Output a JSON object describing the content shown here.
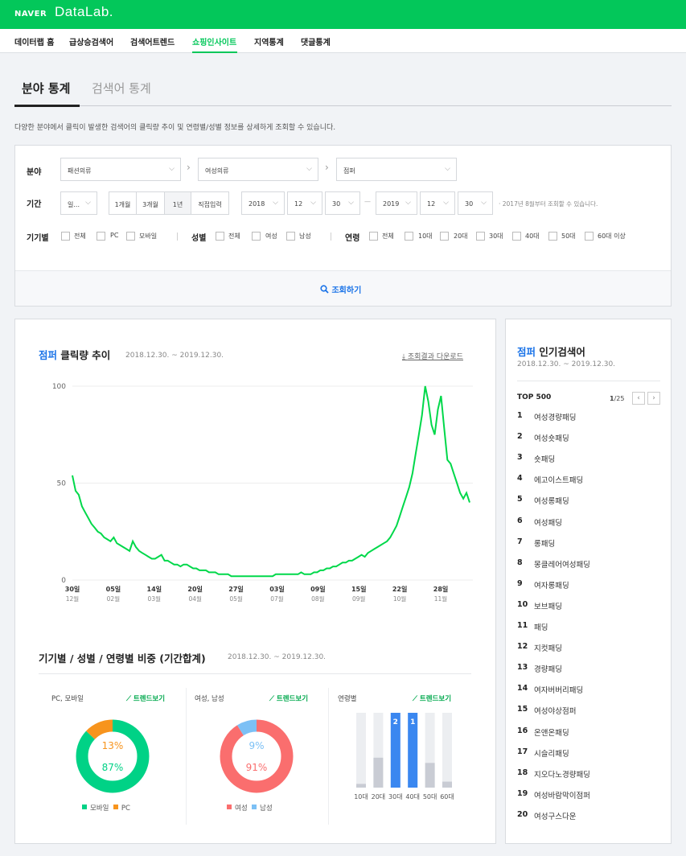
{
  "header": {
    "naver": "NAVER",
    "datalab": "DataLab.",
    "nav": [
      "데이터랩 홈",
      "급상승검색어",
      "검색어트렌드",
      "쇼핑인사이트",
      "지역통계",
      "댓글통계"
    ]
  },
  "tabs": [
    "분야 통계",
    "검색어 통계"
  ],
  "description": "다양한 분야에서 클릭이 발생한 검색어의 클릭량 추이 및 연령별/성별 정보를 상세하게 조회할 수 있습니다.",
  "filters": {
    "field_label": "분야",
    "category1": "패션의류",
    "category2": "여성의류",
    "category3": "점퍼",
    "period_label": "기간",
    "period_unit": "일...",
    "period_buttons": [
      "1개월",
      "3개월",
      "1년",
      "직접입력"
    ],
    "start_year": "2018",
    "start_month": "12",
    "start_day": "30",
    "dash": "—",
    "end_year": "2019",
    "end_month": "12",
    "end_day": "30",
    "note": "· 2017년 8월부터 조회할 수 있습니다.",
    "device_label": "기기별",
    "device_options": [
      "전체",
      "PC",
      "모바일"
    ],
    "gender_label": "성별",
    "gender_options": [
      "전체",
      "여성",
      "남성"
    ],
    "age_label": "연령",
    "age_options": [
      "전체",
      "10대",
      "20대",
      "30대",
      "40대",
      "50대",
      "60대 이상"
    ],
    "search_button": "조회하기"
  },
  "trend": {
    "keyword": "점퍼",
    "title_suffix": "클릭량 추이",
    "date_range": "2018.12.30. ~ 2019.12.30.",
    "download": "조회결과 다운로드"
  },
  "chart_data": {
    "type": "line",
    "ylim": [
      0,
      100
    ],
    "yticks": [
      "100",
      "50",
      "0"
    ],
    "xticks": [
      {
        "day": "30일",
        "month": "12월"
      },
      {
        "day": "05일",
        "month": "02월"
      },
      {
        "day": "14일",
        "month": "03월"
      },
      {
        "day": "20일",
        "month": "04월"
      },
      {
        "day": "27일",
        "month": "05월"
      },
      {
        "day": "03일",
        "month": "07월"
      },
      {
        "day": "09일",
        "month": "08월"
      },
      {
        "day": "15일",
        "month": "09월"
      },
      {
        "day": "22일",
        "month": "10월"
      },
      {
        "day": "28일",
        "month": "11월"
      }
    ],
    "series": [
      {
        "color": "#00d84a",
        "values": [
          54,
          46,
          44,
          38,
          35,
          32,
          29,
          27,
          25,
          24,
          22,
          21,
          20,
          22,
          19,
          18,
          17,
          16,
          15,
          20,
          17,
          15,
          14,
          13,
          12,
          11,
          11,
          12,
          13,
          10,
          10,
          9,
          8,
          8,
          7,
          8,
          8,
          7,
          6,
          6,
          5,
          5,
          5,
          4,
          4,
          4,
          3,
          3,
          3,
          3,
          2,
          2,
          2,
          2,
          2,
          2,
          2,
          2,
          2,
          2,
          2,
          2,
          2,
          2,
          3,
          3,
          3,
          3,
          3,
          3,
          3,
          3,
          4,
          3,
          3,
          3,
          4,
          4,
          5,
          5,
          6,
          6,
          7,
          7,
          8,
          9,
          9,
          10,
          10,
          11,
          12,
          13,
          12,
          14,
          15,
          16,
          17,
          18,
          19,
          20,
          22,
          25,
          28,
          33,
          38,
          43,
          48,
          55,
          65,
          75,
          85,
          100,
          92,
          80,
          75,
          88,
          95,
          78,
          62,
          60,
          55,
          50,
          45,
          42,
          45,
          40
        ]
      }
    ]
  },
  "ratio": {
    "title": "기기별 / 성별 / 연령별 비중 (기간합계)",
    "date_range": "2018.12.30. ~ 2019.12.30.",
    "trend_link": "트렌드보기",
    "device": {
      "title": "PC, 모바일",
      "chart_data": {
        "type": "pie",
        "categories": [
          "모바일",
          "PC"
        ],
        "values": [
          87,
          13
        ],
        "colors": [
          "#00d286",
          "#f7941d"
        ]
      },
      "labels": [
        "87%",
        "13%"
      ],
      "legend": [
        "모바일",
        "PC"
      ]
    },
    "gender": {
      "title": "여성, 남성",
      "chart_data": {
        "type": "pie",
        "categories": [
          "여성",
          "남성"
        ],
        "values": [
          91,
          9
        ],
        "colors": [
          "#fa6e6e",
          "#7cc0f5"
        ]
      },
      "labels": [
        "91%",
        "9%"
      ],
      "legend": [
        "여성",
        "남성"
      ]
    },
    "age": {
      "title": "연령별",
      "chart_data": {
        "type": "bar",
        "categories": [
          "10대",
          "20대",
          "30대",
          "40대",
          "50대",
          "60대"
        ],
        "values": [
          5,
          40,
          100,
          100,
          33,
          8
        ],
        "ranks": [
          "",
          "",
          "2",
          "1",
          "",
          ""
        ],
        "highlight": [
          false,
          false,
          true,
          true,
          false,
          false
        ]
      }
    }
  },
  "popular": {
    "keyword": "점퍼",
    "title_suffix": "인기검색어",
    "date_range": "2018.12.30. ~ 2019.12.30.",
    "top_label": "TOP 500",
    "page_current": "1",
    "page_total": "/25",
    "prev_icon": "‹",
    "next_icon": "›",
    "items": [
      "여성경량패딩",
      "여성숏패딩",
      "숏패딩",
      "에고이스트패딩",
      "여성롱패딩",
      "여성패딩",
      "롱패딩",
      "몽클레어여성패딩",
      "여자롱패딩",
      "보브패딩",
      "패딩",
      "지컷패딩",
      "경량패딩",
      "여자버버리패딩",
      "여성야상점퍼",
      "온앤온패딩",
      "시슬리패딩",
      "지오다노경량패딩",
      "여성바람막이점퍼",
      "여성구스다운"
    ]
  }
}
